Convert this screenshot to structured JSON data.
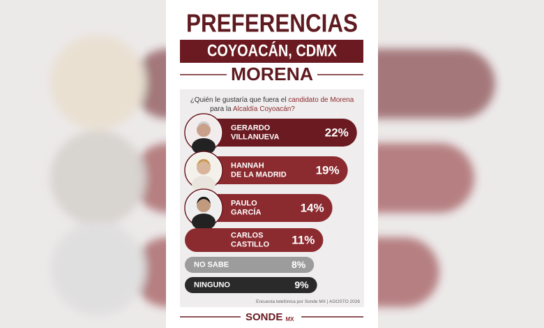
{
  "chart_data": {
    "type": "bar",
    "title": "PREFERENCIAS",
    "subtitle": "COYOACÁN, CDMX",
    "party": "MORENA",
    "question": [
      "¿Quién le gustaría que fuera el",
      "candidato de Morena",
      "para la",
      "Alcaldía Coyoacán?"
    ],
    "categories": [
      [
        "GERARDO",
        "VILLANUEVA"
      ],
      [
        "HANNAH",
        "DE LA MADRID"
      ],
      [
        "PAULO",
        "GARCÍA"
      ],
      [
        "CARLOS",
        "CASTILLO"
      ],
      [
        "NO SABE"
      ],
      [
        "NINGUNO"
      ]
    ],
    "values": [
      22,
      19,
      14,
      11,
      8,
      9
    ],
    "value_labels": [
      "22%",
      "19%",
      "14%",
      "11%",
      "8%",
      "9%"
    ],
    "colors": [
      "#6a1a20",
      "#8b2a2f",
      "#8b2a2f",
      "#8b2a2f",
      "#9c9c9c",
      "#2a2a2a"
    ],
    "source": "Encuesta telefónica por Sonde MX",
    "date": "AGOSTO 2026",
    "brand": "SONDE",
    "brand_suffix": "MX"
  }
}
